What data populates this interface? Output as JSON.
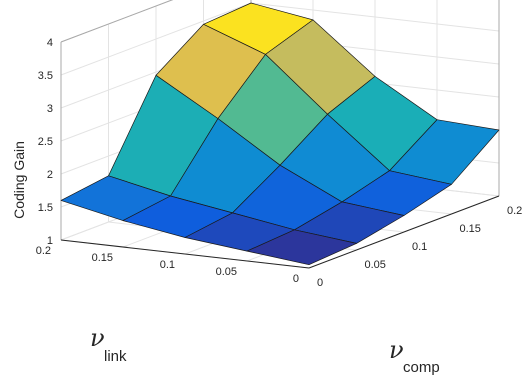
{
  "chart_data": {
    "type": "surface",
    "title": "",
    "zlabel": "Coding Gain",
    "xlabel": {
      "symbol": "ν",
      "subscript": "comp"
    },
    "ylabel": {
      "symbol": "ν",
      "subscript": "link"
    },
    "x_ticks": [
      "0",
      "0.05",
      "0.1",
      "0.15",
      "0.2"
    ],
    "y_ticks": [
      "0",
      "0.05",
      "0.1",
      "0.15",
      "0.2"
    ],
    "z_ticks": [
      "1",
      "1.5",
      "2",
      "2.5",
      "3",
      "3.5",
      "4"
    ],
    "x": [
      0,
      0.05,
      0.1,
      0.15,
      0.2
    ],
    "y": [
      0,
      0.05,
      0.1,
      0.15,
      0.2
    ],
    "xlim": [
      0,
      0.2
    ],
    "ylim": [
      0,
      0.2
    ],
    "zlim": [
      1,
      4
    ],
    "z": [
      [
        1.05,
        1.15,
        1.25,
        1.4,
        1.6
      ],
      [
        1.1,
        1.2,
        1.35,
        1.5,
        1.7
      ],
      [
        1.25,
        1.35,
        1.8,
        2.4,
        2.95
      ],
      [
        1.45,
        1.55,
        2.3,
        3.1,
        3.45
      ],
      [
        2.0,
        2.05,
        2.6,
        3.35,
        3.5
      ]
    ],
    "grid": true,
    "colormap": "parula",
    "colors": [
      "#352a87",
      "#0f5cdd",
      "#1481d6",
      "#06a4ca",
      "#2eb7a4",
      "#87bf77",
      "#d1bb59",
      "#fec832",
      "#f9fb0e"
    ]
  }
}
